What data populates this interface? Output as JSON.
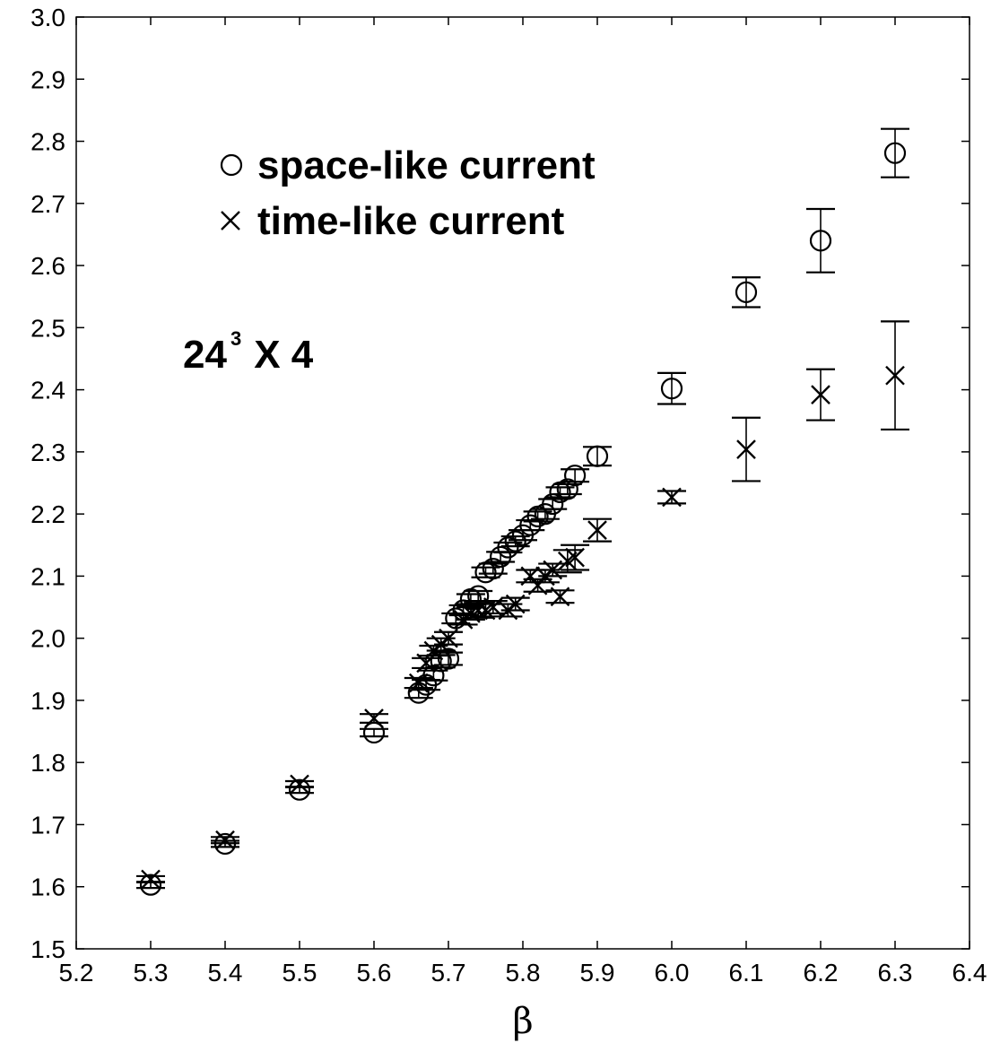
{
  "chart_data": {
    "type": "scatter",
    "title": "",
    "xlabel": "β",
    "ylabel": "",
    "xlim": [
      5.2,
      6.4
    ],
    "ylim": [
      1.5,
      3.0
    ],
    "x_ticks": [
      "5.2",
      "5.3",
      "5.4",
      "5.5",
      "5.6",
      "5.7",
      "5.8",
      "5.9",
      "6.0",
      "6.1",
      "6.2",
      "6.3",
      "6.4"
    ],
    "y_ticks": [
      "1.5",
      "1.6",
      "1.7",
      "1.8",
      "1.9",
      "2.0",
      "2.1",
      "2.2",
      "2.3",
      "2.4",
      "2.5",
      "2.6",
      "2.7",
      "2.8",
      "2.9",
      "3.0"
    ],
    "grid": false,
    "legend_position": "top-left",
    "annotation": {
      "base": "24",
      "sup": "3",
      "rest": " X 4"
    },
    "series": [
      {
        "name": "space-like current",
        "marker": "circle",
        "points": [
          {
            "x": 5.3,
            "y": 1.603,
            "err": 0.005
          },
          {
            "x": 5.4,
            "y": 1.669,
            "err": 0.005
          },
          {
            "x": 5.5,
            "y": 1.756,
            "err": 0.005
          },
          {
            "x": 5.6,
            "y": 1.848,
            "err": 0.006
          },
          {
            "x": 5.66,
            "y": 1.912,
            "err": 0.008
          },
          {
            "x": 5.67,
            "y": 1.925,
            "err": 0.008
          },
          {
            "x": 5.68,
            "y": 1.94,
            "err": 0.008
          },
          {
            "x": 5.69,
            "y": 1.963,
            "err": 0.01
          },
          {
            "x": 5.7,
            "y": 1.967,
            "err": 0.01
          },
          {
            "x": 5.71,
            "y": 2.032,
            "err": 0.008
          },
          {
            "x": 5.72,
            "y": 2.045,
            "err": 0.008
          },
          {
            "x": 5.73,
            "y": 2.063,
            "err": 0.008
          },
          {
            "x": 5.74,
            "y": 2.068,
            "err": 0.008
          },
          {
            "x": 5.75,
            "y": 2.106,
            "err": 0.008
          },
          {
            "x": 5.76,
            "y": 2.112,
            "err": 0.008
          },
          {
            "x": 5.77,
            "y": 2.131,
            "err": 0.008
          },
          {
            "x": 5.78,
            "y": 2.146,
            "err": 0.008
          },
          {
            "x": 5.79,
            "y": 2.156,
            "err": 0.008
          },
          {
            "x": 5.8,
            "y": 2.166,
            "err": 0.008
          },
          {
            "x": 5.81,
            "y": 2.182,
            "err": 0.008
          },
          {
            "x": 5.82,
            "y": 2.196,
            "err": 0.008
          },
          {
            "x": 5.83,
            "y": 2.2,
            "err": 0.008
          },
          {
            "x": 5.84,
            "y": 2.216,
            "err": 0.008
          },
          {
            "x": 5.85,
            "y": 2.235,
            "err": 0.008
          },
          {
            "x": 5.86,
            "y": 2.24,
            "err": 0.008
          },
          {
            "x": 5.87,
            "y": 2.262,
            "err": 0.01
          },
          {
            "x": 5.9,
            "y": 2.293,
            "err": 0.015
          },
          {
            "x": 6.0,
            "y": 2.402,
            "err": 0.025
          },
          {
            "x": 6.1,
            "y": 2.557,
            "err": 0.024
          },
          {
            "x": 6.2,
            "y": 2.64,
            "err": 0.051
          },
          {
            "x": 6.3,
            "y": 2.781,
            "err": 0.039
          }
        ]
      },
      {
        "name": "time-like current",
        "marker": "cross",
        "points": [
          {
            "x": 5.3,
            "y": 1.612,
            "err": 0.005
          },
          {
            "x": 5.4,
            "y": 1.675,
            "err": 0.005
          },
          {
            "x": 5.5,
            "y": 1.765,
            "err": 0.005
          },
          {
            "x": 5.6,
            "y": 1.871,
            "err": 0.007
          },
          {
            "x": 5.66,
            "y": 1.928,
            "err": 0.008
          },
          {
            "x": 5.67,
            "y": 1.96,
            "err": 0.008
          },
          {
            "x": 5.68,
            "y": 1.98,
            "err": 0.008
          },
          {
            "x": 5.69,
            "y": 1.99,
            "err": 0.01
          },
          {
            "x": 5.7,
            "y": 2.0,
            "err": 0.01
          },
          {
            "x": 5.72,
            "y": 2.03,
            "err": 0.008
          },
          {
            "x": 5.73,
            "y": 2.04,
            "err": 0.01
          },
          {
            "x": 5.74,
            "y": 2.045,
            "err": 0.012
          },
          {
            "x": 5.75,
            "y": 2.045,
            "err": 0.01
          },
          {
            "x": 5.76,
            "y": 2.05,
            "err": 0.01
          },
          {
            "x": 5.78,
            "y": 2.045,
            "err": 0.01
          },
          {
            "x": 5.79,
            "y": 2.055,
            "err": 0.01
          },
          {
            "x": 5.81,
            "y": 2.1,
            "err": 0.01
          },
          {
            "x": 5.82,
            "y": 2.085,
            "err": 0.01
          },
          {
            "x": 5.83,
            "y": 2.1,
            "err": 0.01
          },
          {
            "x": 5.84,
            "y": 2.11,
            "err": 0.01
          },
          {
            "x": 5.85,
            "y": 2.067,
            "err": 0.01
          },
          {
            "x": 5.86,
            "y": 2.124,
            "err": 0.018
          },
          {
            "x": 5.87,
            "y": 2.13,
            "err": 0.02
          },
          {
            "x": 5.9,
            "y": 2.174,
            "err": 0.018
          },
          {
            "x": 6.0,
            "y": 2.227,
            "err": 0.01
          },
          {
            "x": 6.1,
            "y": 2.304,
            "err": 0.051
          },
          {
            "x": 6.2,
            "y": 2.392,
            "err": 0.041
          },
          {
            "x": 6.3,
            "y": 2.423,
            "err": 0.087
          }
        ]
      }
    ]
  }
}
